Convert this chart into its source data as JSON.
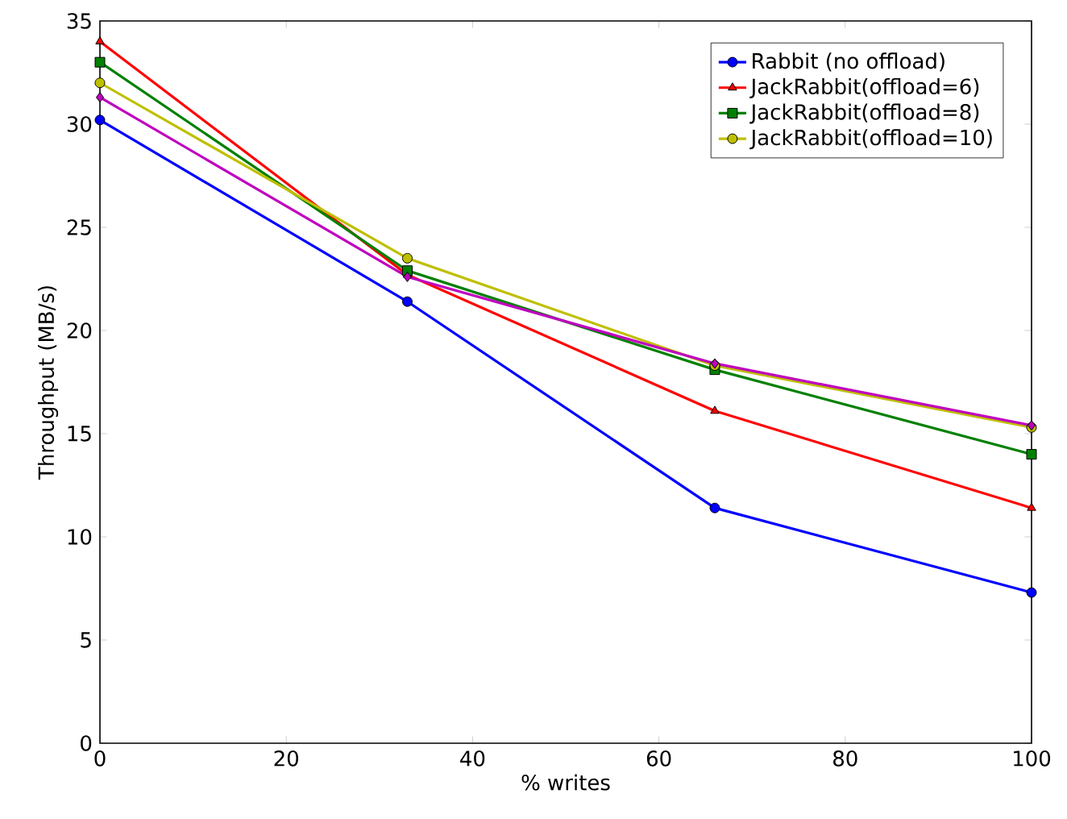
{
  "chart_data": {
    "type": "line",
    "xlabel": "% writes",
    "ylabel": "Throughput (MB/s)",
    "x": [
      0,
      33,
      66,
      100
    ],
    "series": [
      {
        "name": "Rabbit (no offload)",
        "color": "#0000ff",
        "marker": "circle",
        "values": [
          30.2,
          21.4,
          11.4,
          7.3
        ]
      },
      {
        "name": "JackRabbit(offload=6)",
        "color": "#ff0000",
        "marker": "triangle",
        "values": [
          34.0,
          22.7,
          16.1,
          11.4
        ]
      },
      {
        "name": "JackRabbit(offload=8)",
        "color": "#008000",
        "marker": "square",
        "values": [
          33.0,
          22.9,
          18.1,
          14.0
        ]
      },
      {
        "name": "JackRabbit(offload=10)",
        "color": "#bfbf00",
        "marker": "circle",
        "values": [
          32.0,
          23.5,
          18.3,
          15.3
        ]
      },
      {
        "color": "#bf00bf",
        "marker": "diamond",
        "values": [
          31.3,
          22.6,
          18.4,
          15.4
        ]
      }
    ],
    "xlim": [
      0,
      100
    ],
    "ylim": [
      0,
      35
    ],
    "xticks": [
      0,
      20,
      40,
      60,
      80,
      100
    ],
    "yticks": [
      0,
      5,
      10,
      15,
      20,
      25,
      30,
      35
    ],
    "legend": "top right",
    "grid": false,
    "line_style": "solid"
  }
}
